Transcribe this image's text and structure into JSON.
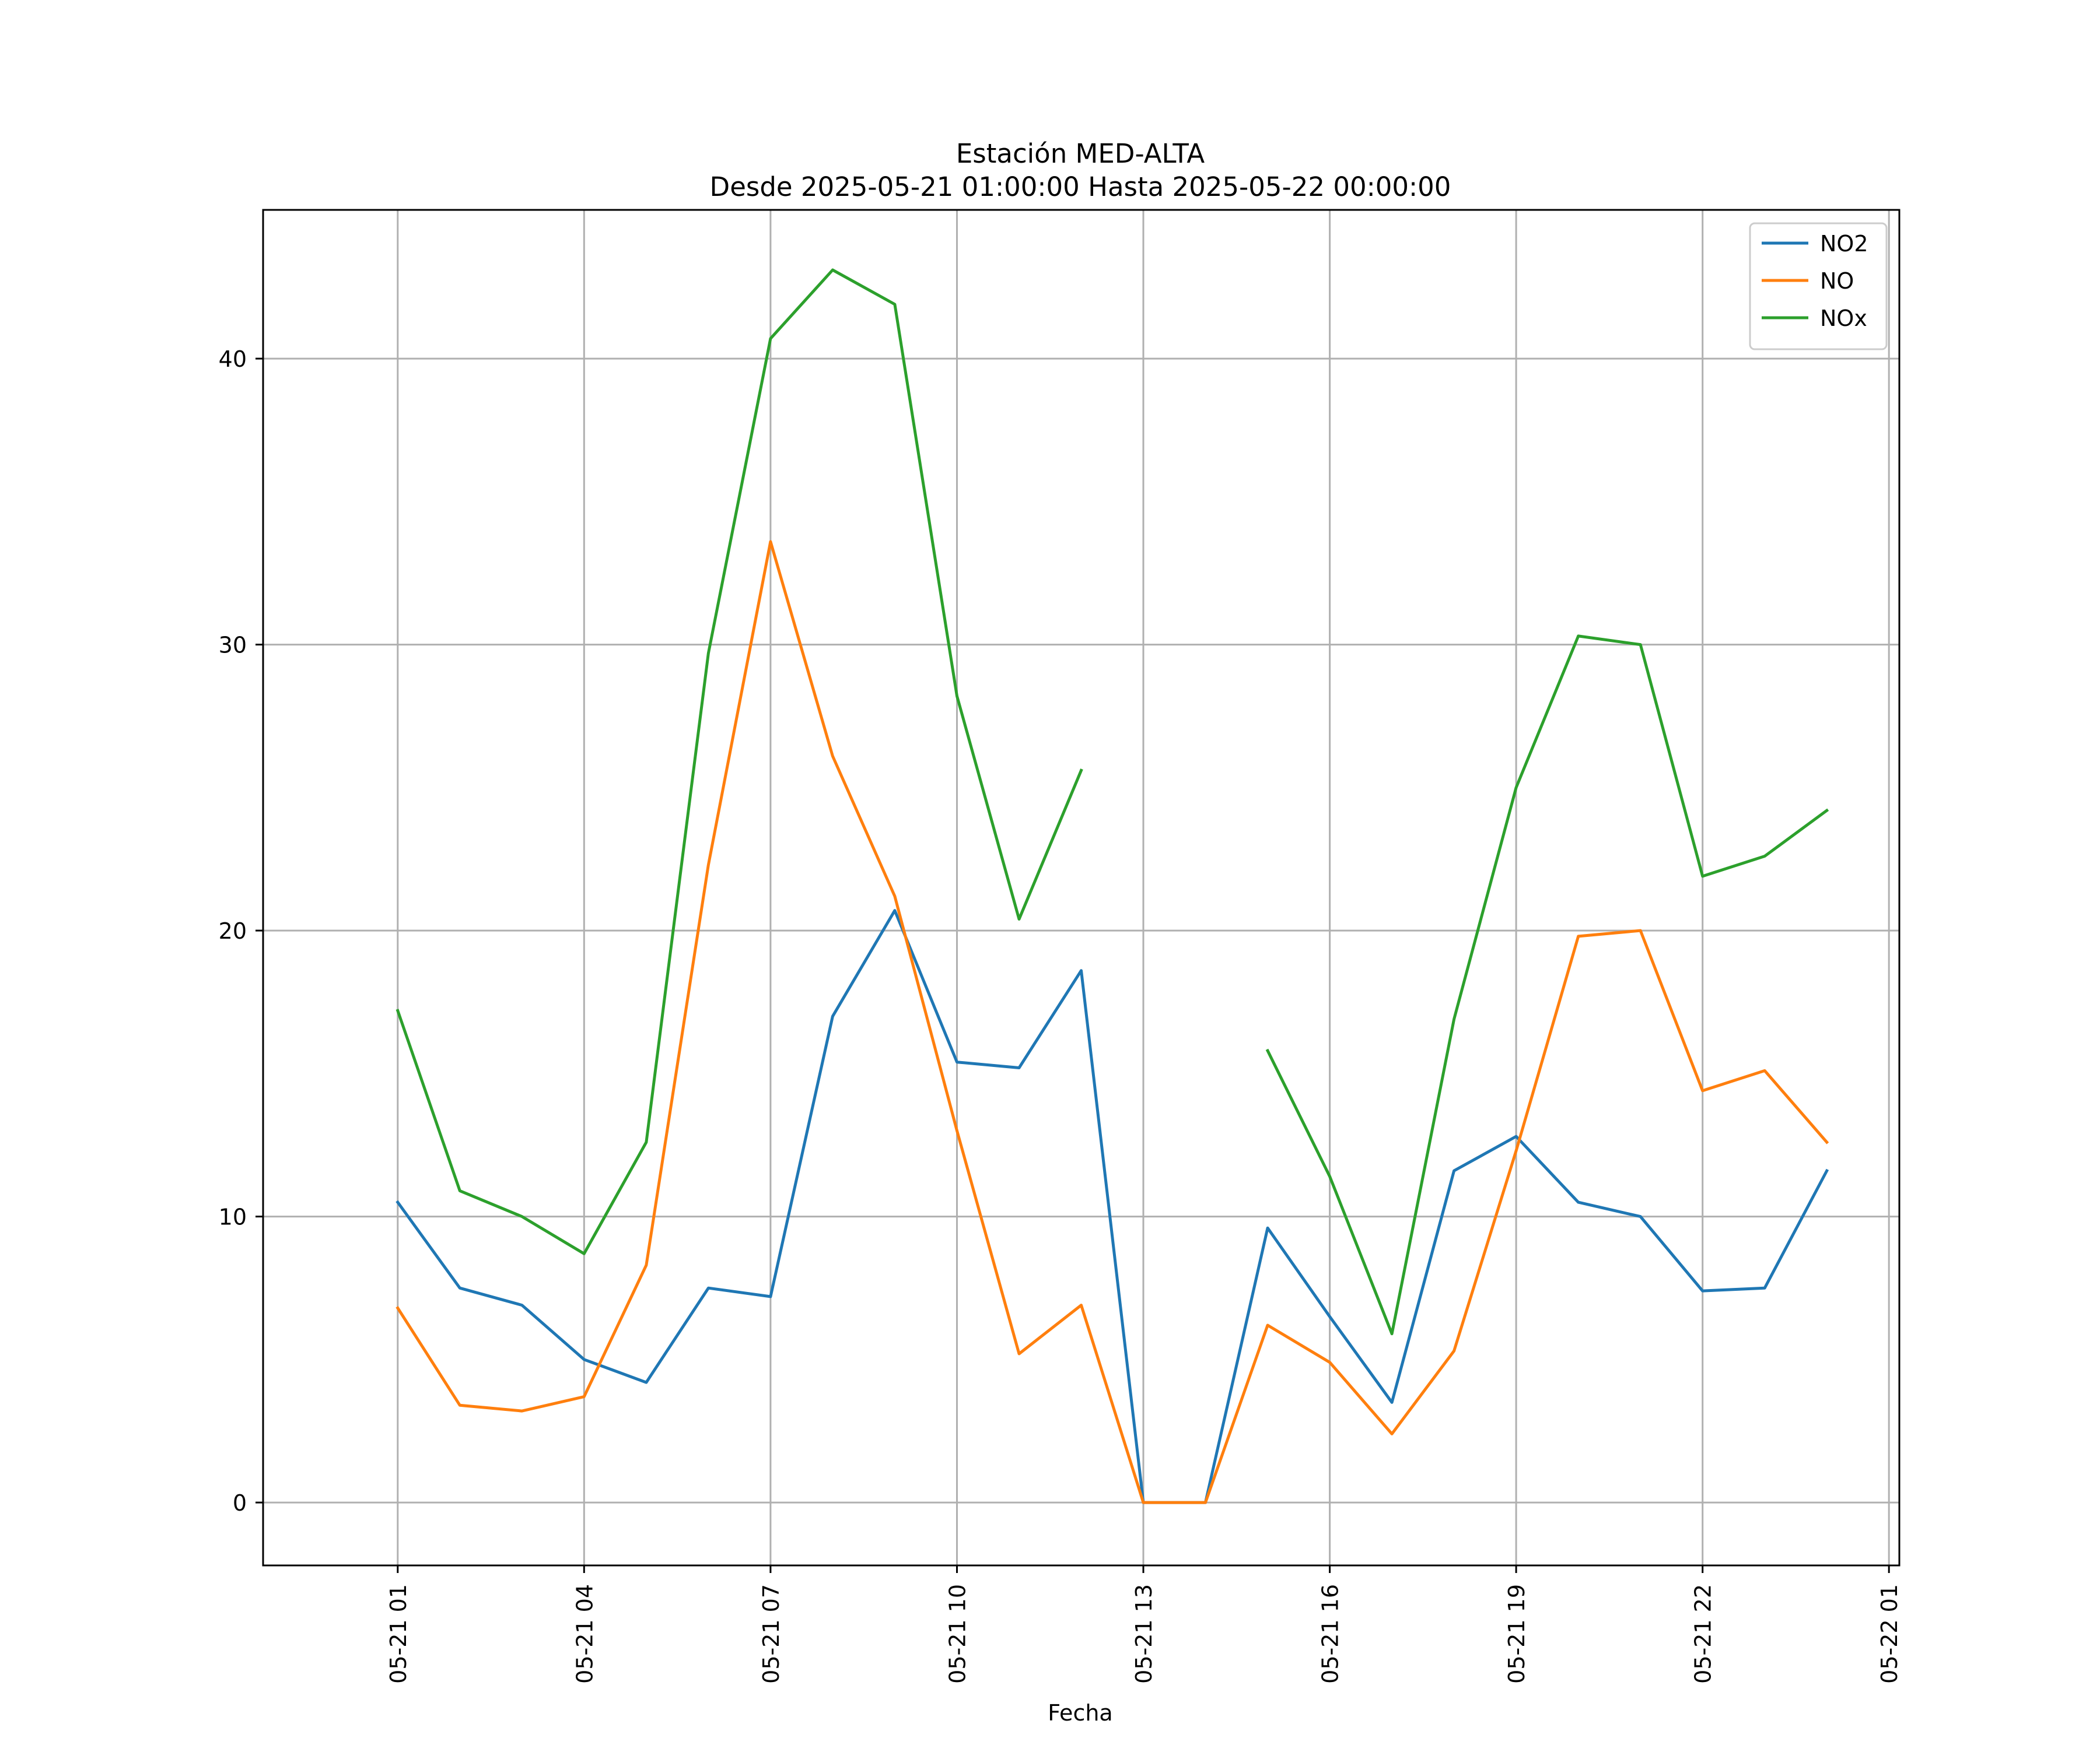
{
  "chart_data": {
    "type": "line",
    "title": "Estación MED-ALTA",
    "subtitle": "Desde 2025-05-21 01:00:00 Hasta 2025-05-22 00:00:00",
    "xlabel": "Fecha",
    "ylabel": "",
    "x": [
      "2025-05-21 01:00",
      "2025-05-21 02:00",
      "2025-05-21 03:00",
      "2025-05-21 04:00",
      "2025-05-21 05:00",
      "2025-05-21 06:00",
      "2025-05-21 07:00",
      "2025-05-21 08:00",
      "2025-05-21 09:00",
      "2025-05-21 10:00",
      "2025-05-21 11:00",
      "2025-05-21 12:00",
      "2025-05-21 13:00",
      "2025-05-21 14:00",
      "2025-05-21 15:00",
      "2025-05-21 16:00",
      "2025-05-21 17:00",
      "2025-05-21 18:00",
      "2025-05-21 19:00",
      "2025-05-21 20:00",
      "2025-05-21 21:00",
      "2025-05-21 22:00",
      "2025-05-21 23:00",
      "2025-05-22 00:00"
    ],
    "xlim": [
      "2025-05-20 22:50",
      "2025-05-22 01:10"
    ],
    "x_ticks": [
      "2025-05-21 01:00",
      "2025-05-21 04:00",
      "2025-05-21 07:00",
      "2025-05-21 10:00",
      "2025-05-21 13:00",
      "2025-05-21 16:00",
      "2025-05-21 19:00",
      "2025-05-21 22:00",
      "2025-05-22 01:00"
    ],
    "x_tick_labels": [
      "05-21 01",
      "05-21 04",
      "05-21 07",
      "05-21 10",
      "05-21 13",
      "05-21 16",
      "05-21 19",
      "05-21 22",
      "05-22 01"
    ],
    "ylim": [
      -2.2,
      45.2
    ],
    "y_ticks": [
      0,
      10,
      20,
      30,
      40
    ],
    "y_tick_labels": [
      "0",
      "10",
      "20",
      "30",
      "40"
    ],
    "grid": true,
    "legend_position": "top-right",
    "series": [
      {
        "name": "NO2",
        "color": "#1f77b4",
        "values": [
          10.5,
          7.5,
          6.9,
          5.0,
          4.2,
          7.5,
          7.2,
          17.0,
          20.7,
          15.4,
          15.2,
          18.6,
          0.0,
          0.0,
          9.6,
          6.5,
          3.5,
          11.6,
          12.8,
          10.5,
          10.0,
          7.4,
          7.5,
          11.6
        ]
      },
      {
        "name": "NO",
        "color": "#ff7f0e",
        "values": [
          6.8,
          3.4,
          3.2,
          3.7,
          8.3,
          22.3,
          33.6,
          26.1,
          21.2,
          13.0,
          5.2,
          6.9,
          0.0,
          0.0,
          6.2,
          4.9,
          2.4,
          5.3,
          12.3,
          19.8,
          20.0,
          14.4,
          15.1,
          12.6
        ]
      },
      {
        "name": "NOx",
        "color": "#2ca02c",
        "values": [
          17.2,
          10.9,
          10.0,
          8.7,
          12.6,
          29.7,
          40.7,
          43.1,
          41.9,
          28.2,
          20.4,
          25.6,
          null,
          null,
          15.8,
          11.4,
          5.9,
          16.9,
          25.0,
          30.3,
          30.0,
          21.9,
          22.6,
          24.2
        ]
      }
    ]
  }
}
